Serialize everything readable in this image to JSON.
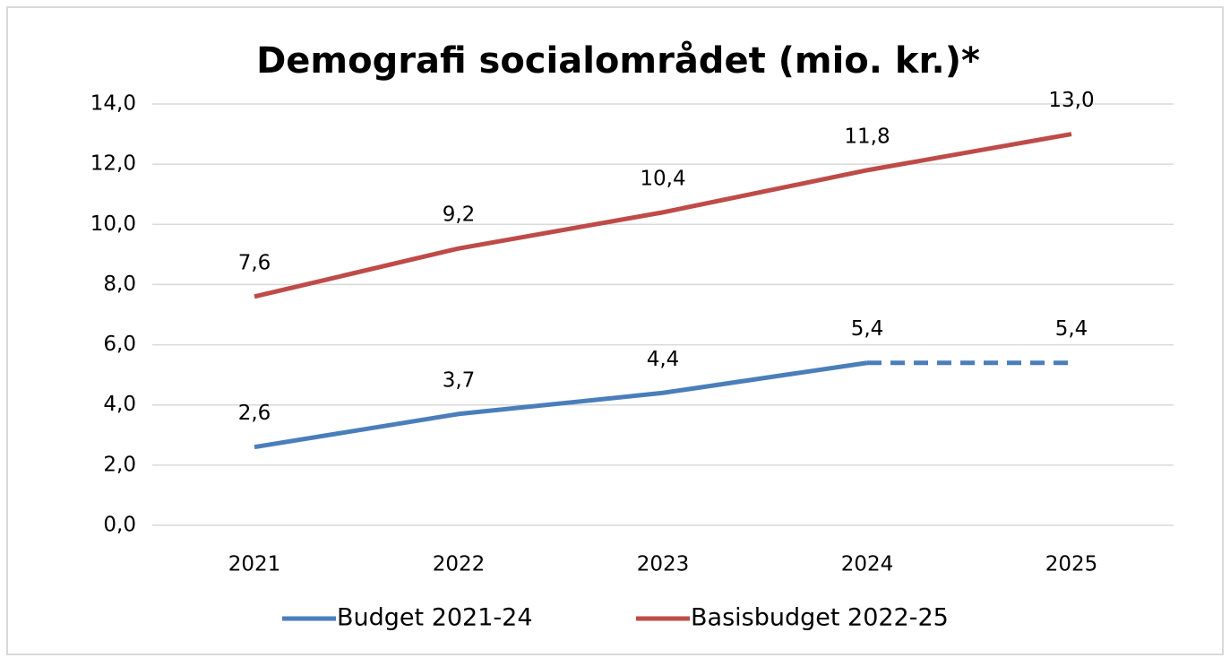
{
  "chart_data": {
    "type": "line",
    "title": "Demografi socialområdet (mio. kr.)*",
    "categories": [
      "2021",
      "2022",
      "2023",
      "2024",
      "2025"
    ],
    "series": [
      {
        "name": "Budget 2021-24",
        "color": "#4a7ebb",
        "values": [
          2.6,
          3.7,
          4.4,
          5.4,
          5.4
        ],
        "value_labels": [
          "2,6",
          "3,7",
          "4,4",
          "5,4",
          "5,4"
        ],
        "dashed": [
          false,
          false,
          false,
          false,
          true
        ]
      },
      {
        "name": "Basisbudget 2022-25",
        "color": "#be4b48",
        "values": [
          7.6,
          9.2,
          10.4,
          11.8,
          13.0
        ],
        "value_labels": [
          "7,6",
          "9,2",
          "10,4",
          "11,8",
          "13,0"
        ],
        "dashed": [
          false,
          false,
          false,
          false,
          false
        ]
      }
    ],
    "ylim": [
      0,
      14
    ],
    "yticks": [
      {
        "value": 0,
        "label": "0,0"
      },
      {
        "value": 2,
        "label": "2,0"
      },
      {
        "value": 4,
        "label": "4,0"
      },
      {
        "value": 6,
        "label": "6,0"
      },
      {
        "value": 8,
        "label": "8,0"
      },
      {
        "value": 10,
        "label": "10,0"
      },
      {
        "value": 12,
        "label": "12,0"
      },
      {
        "value": 14,
        "label": "14,0"
      }
    ],
    "grid": true,
    "legend": "bottom"
  }
}
